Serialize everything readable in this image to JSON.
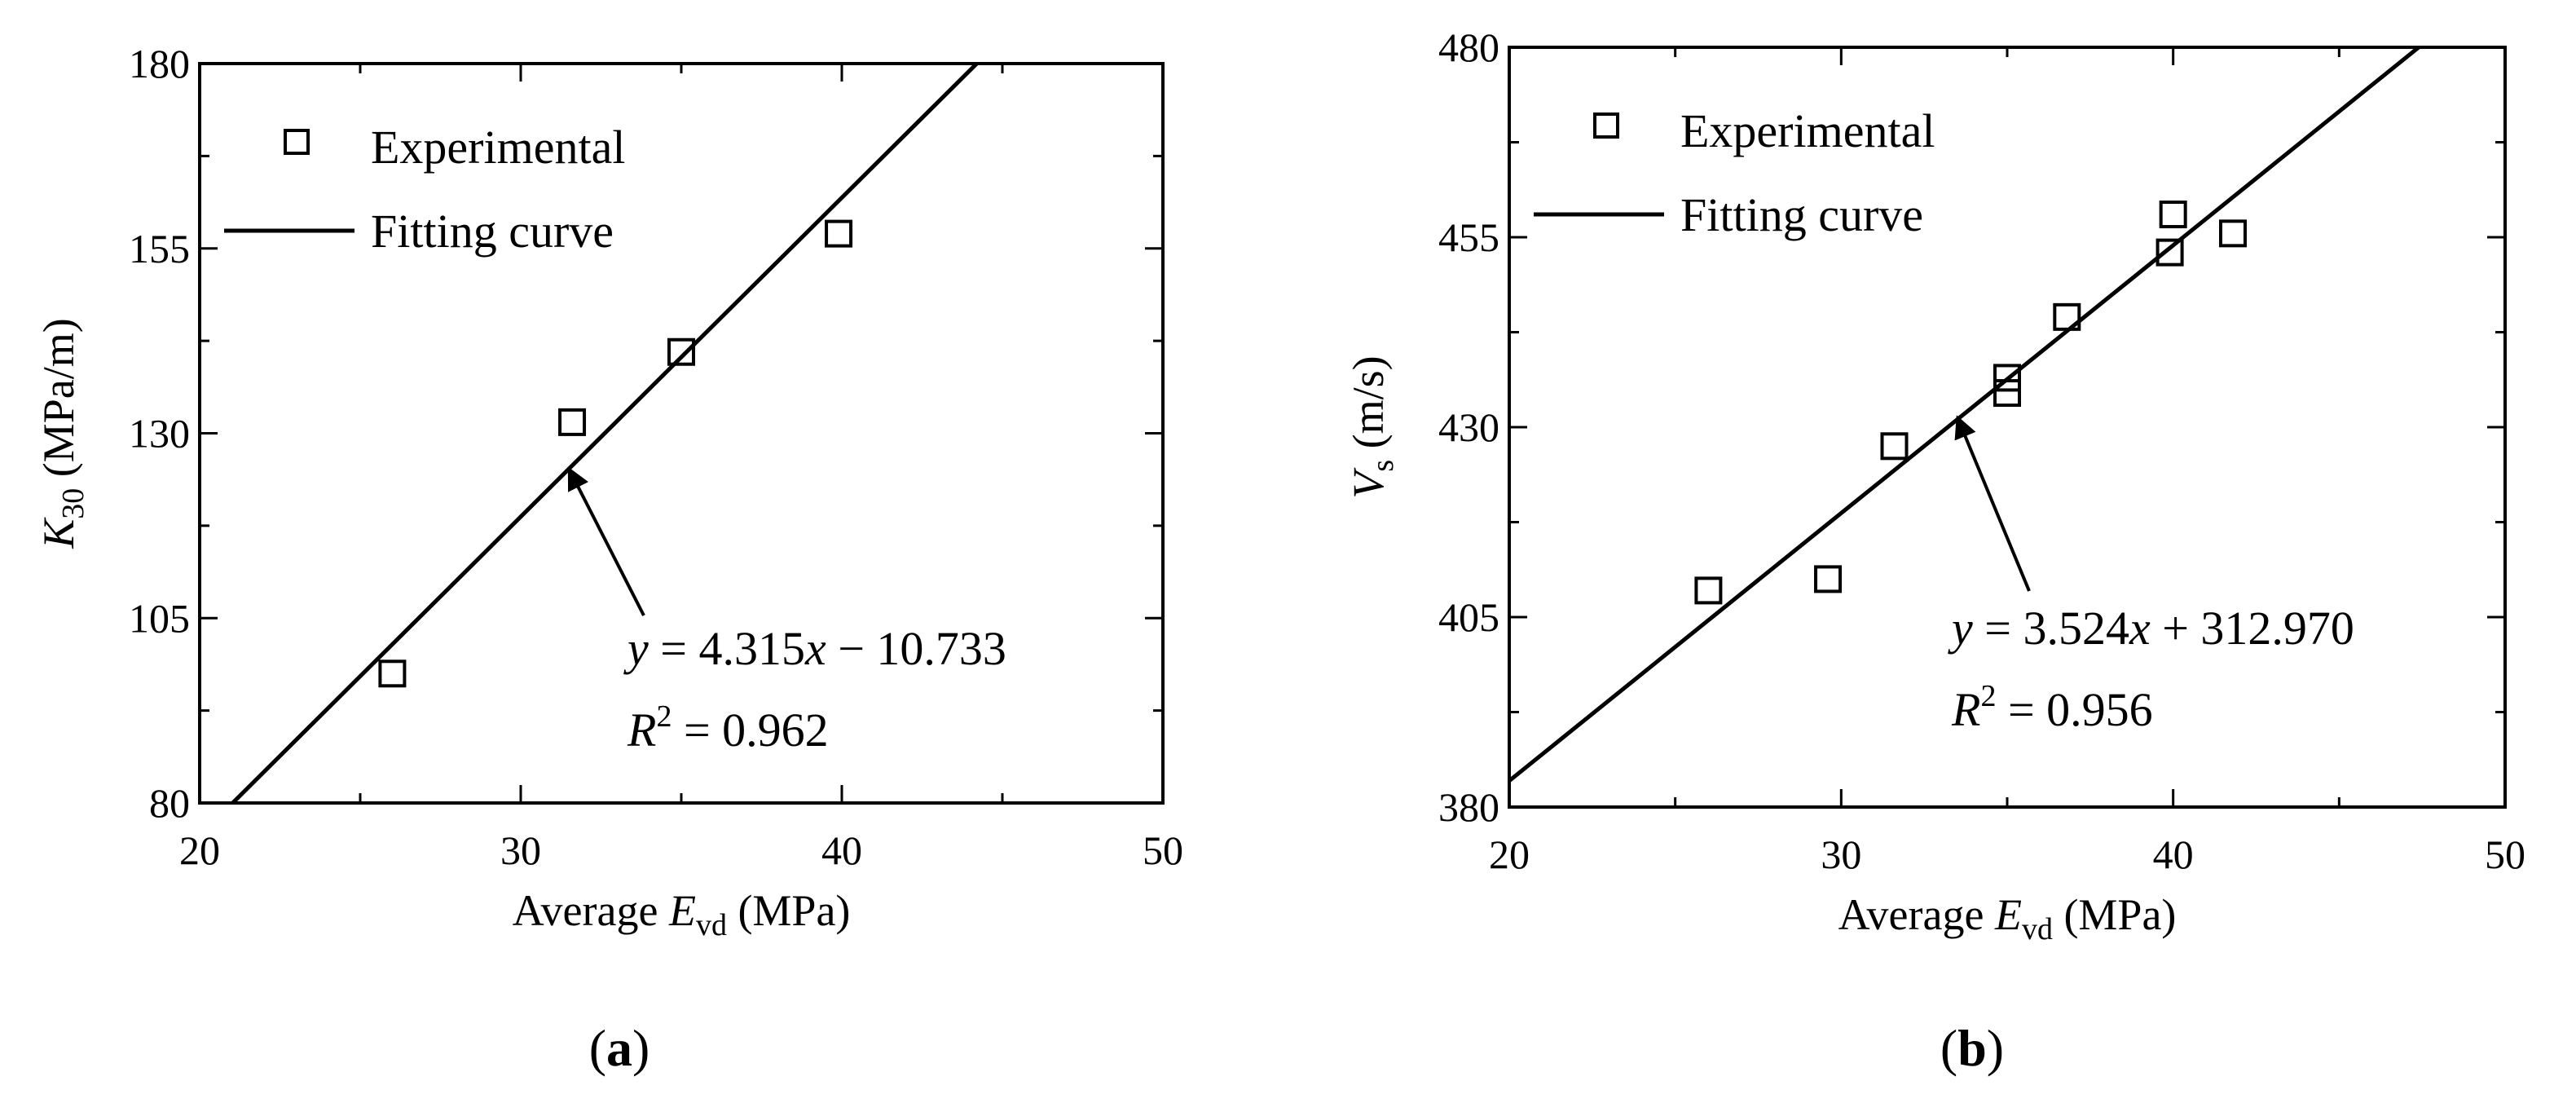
{
  "chart_data": [
    {
      "type": "scatter",
      "panel_label": "a",
      "xlim": [
        20,
        50
      ],
      "ylim": [
        80,
        180
      ],
      "xticks": [
        "20",
        "30",
        "40",
        "50"
      ],
      "yticks": [
        "80",
        "105",
        "130",
        "155",
        "180"
      ],
      "xlabel": {
        "pre": "Average ",
        "var": "E",
        "sub": "vd",
        "post": " (MPa)"
      },
      "ylabel": {
        "var": "K",
        "sub": "30",
        "post": " (MPa/m)"
      },
      "legend": {
        "position": "top-left",
        "experimental": "Experimental",
        "fitting": "Fitting curve"
      },
      "series": [
        {
          "name": "Experimental",
          "x": [
            26.0,
            31.6,
            35.0,
            39.9
          ],
          "y": [
            97.5,
            131.5,
            141.0,
            157.0
          ]
        },
        {
          "name": "Fitting curve",
          "slope": 4.315,
          "intercept": -10.733
        }
      ],
      "annotation": {
        "eq_y": "y",
        "eq_mid": " = 4.315",
        "eq_x": "x",
        "eq_tail": " − 10.733",
        "r2_var": "R",
        "r2_sup": "2",
        "r2_tail": " = 0.962",
        "arrow_target": [
          31.5,
          125.2
        ]
      },
      "caption": {
        "open": "(",
        "label": "a",
        "close": ")"
      }
    },
    {
      "type": "scatter",
      "panel_label": "b",
      "xlim": [
        20,
        50
      ],
      "ylim": [
        380,
        480
      ],
      "xticks": [
        "20",
        "30",
        "40",
        "50"
      ],
      "yticks": [
        "380",
        "405",
        "430",
        "455",
        "480"
      ],
      "xlabel": {
        "pre": "Average ",
        "var": "E",
        "sub": "vd",
        "post": " (MPa)"
      },
      "ylabel": {
        "var": "V",
        "sub": "s",
        "post": " (m/s)"
      },
      "legend": {
        "position": "top-left",
        "experimental": "Experimental",
        "fitting": "Fitting curve"
      },
      "series": [
        {
          "name": "Experimental",
          "x": [
            26.0,
            29.6,
            31.6,
            35.0,
            35.0,
            36.8,
            39.9,
            40.0,
            41.8
          ],
          "y": [
            408.5,
            410.0,
            427.5,
            436.5,
            434.5,
            444.5,
            453.0,
            458.0,
            455.5
          ]
        },
        {
          "name": "Fitting curve",
          "slope": 3.524,
          "intercept": 312.97
        }
      ],
      "annotation": {
        "eq_y": "y",
        "eq_mid": " = 3.524",
        "eq_x": "x",
        "eq_tail": " + 312.970",
        "r2_var": "R",
        "r2_sup": "2",
        "r2_tail": " = 0.956",
        "arrow_target": [
          33.5,
          431.3
        ]
      },
      "caption": {
        "open": "(",
        "label": "b",
        "close": ")"
      }
    }
  ]
}
